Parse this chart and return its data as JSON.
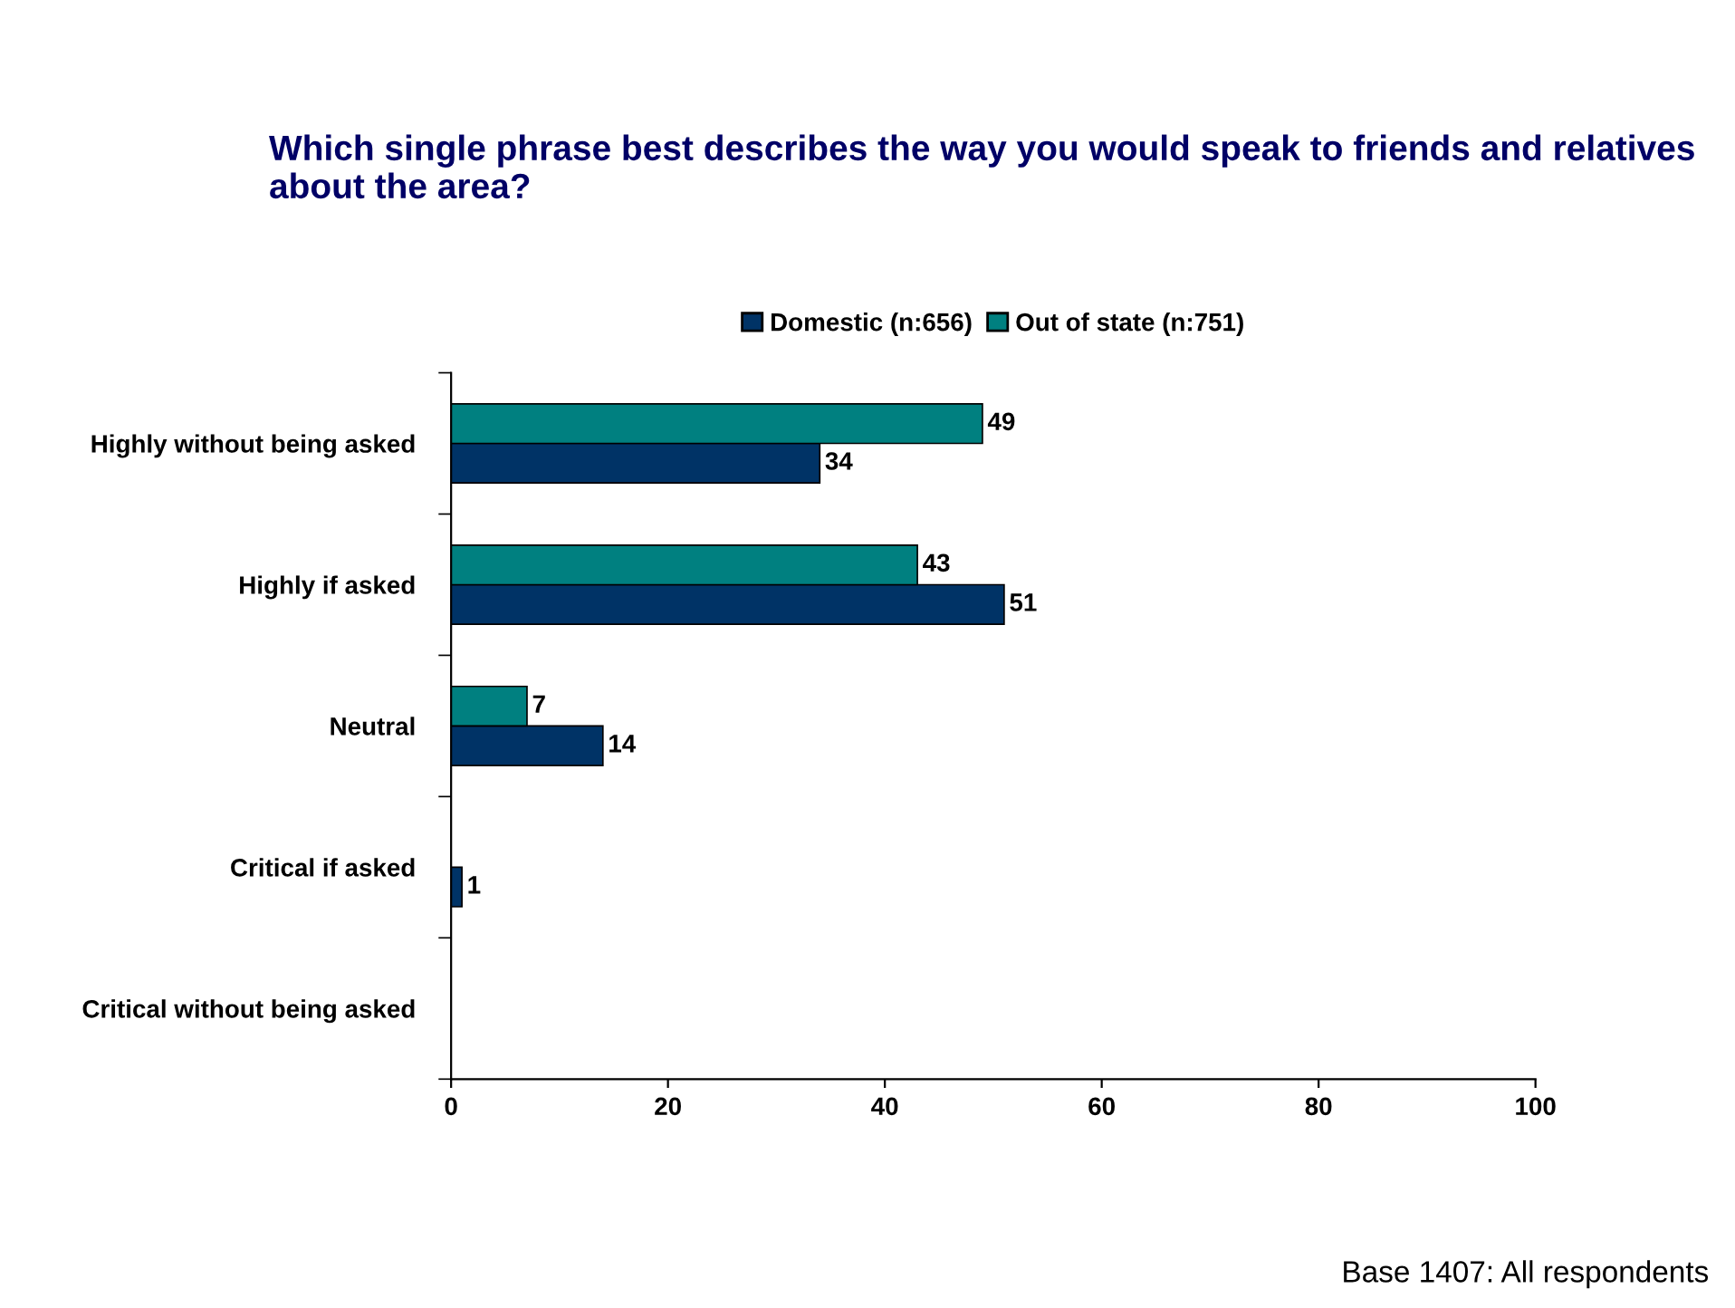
{
  "chart_data": {
    "type": "bar",
    "orientation": "horizontal",
    "title": "Which single phrase best describes the way you would speak to friends and relatives about the area?",
    "categories": [
      "Highly without being asked",
      "Highly if asked",
      "Neutral",
      "Critical if asked",
      "Critical without being asked"
    ],
    "series": [
      {
        "name": "Domestic (n:656)",
        "color": "#003366",
        "values": [
          34,
          51,
          14,
          1,
          null
        ]
      },
      {
        "name": "Out of state (n:751)",
        "color": "#008080",
        "values": [
          49,
          43,
          7,
          null,
          null
        ]
      }
    ],
    "xlim": [
      0,
      100
    ],
    "xticks": [
      0,
      20,
      40,
      60,
      80,
      100
    ],
    "data_labels": true,
    "legend": "top",
    "grid": false,
    "annotations": [
      "Base 1407: All respondents"
    ]
  }
}
